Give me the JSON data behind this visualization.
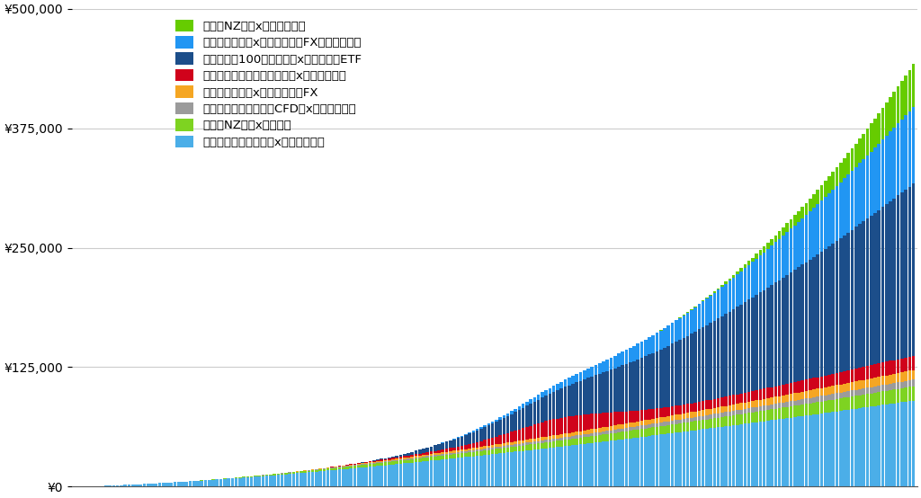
{
  "series": [
    {
      "label": "メキシコペソ円両建てx手動トラリピ",
      "color": "#4BAEE8"
    },
    {
      "label": "豪ドルNZドルxトラリピ",
      "color": "#7ED321"
    },
    {
      "label": "ビットコイン暗号資産CFD買x手動トラリピ",
      "color": "#9B9B9B"
    },
    {
      "label": "ユーロポンド売xトライオートFX",
      "color": "#F5A623"
    },
    {
      "label": "カナダドル円買・ユーロ円売x手動トラリピ",
      "color": "#D0021B"
    },
    {
      "label": "ナスダック100トリプル買xトラオートETF",
      "color": "#1C4E8A"
    },
    {
      "label": "ユーロポンド売xトライオートFXハイブリット",
      "color": "#2196F3"
    },
    {
      "label": "豪ドルNZドルx手動リピート",
      "color": "#66CC00"
    }
  ],
  "n_bars": 220,
  "ylim": [
    0,
    500000
  ],
  "yticks": [
    0,
    125000,
    250000,
    375000,
    500000
  ],
  "ytick_labels": [
    "¥0",
    "¥125,000",
    "¥250,000",
    "¥375,000",
    "¥500,000"
  ],
  "background_color": "#FFFFFF",
  "grid_color": "#CCCCCC",
  "bar_width": 0.85,
  "legend_order": [
    7,
    6,
    5,
    4,
    3,
    2,
    1,
    0
  ]
}
